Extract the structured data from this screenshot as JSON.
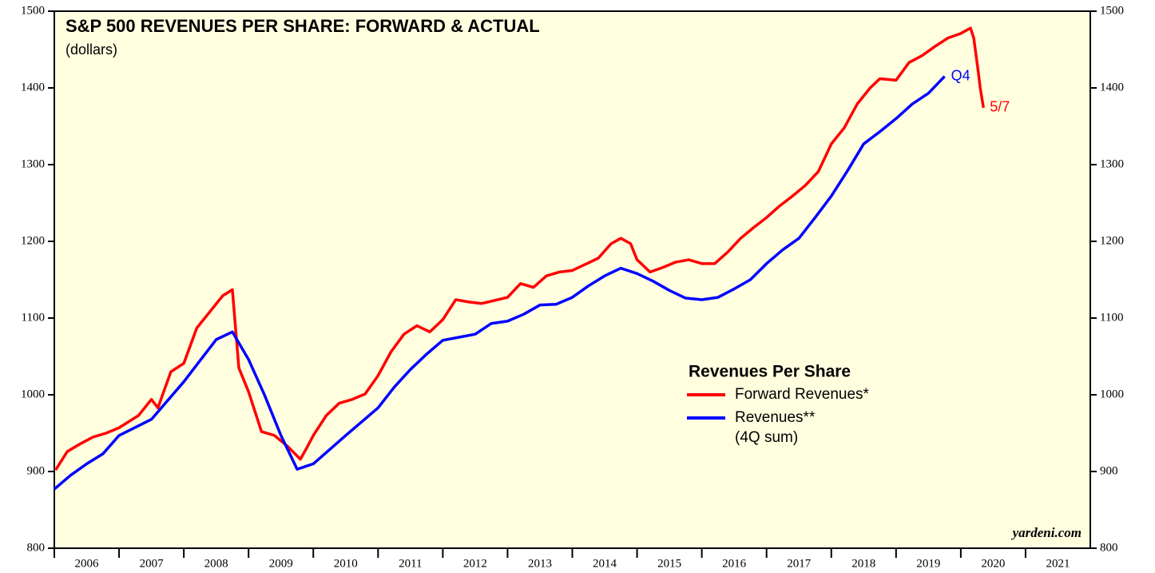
{
  "chart_data": {
    "type": "line",
    "title": "S&P 500 REVENUES PER SHARE: FORWARD & ACTUAL",
    "subtitle": "(dollars)",
    "legend_title": "Revenues Per Share",
    "source": "yardeni.com",
    "xlim": [
      2006,
      2022
    ],
    "xticks": [
      2006,
      2007,
      2008,
      2009,
      2010,
      2011,
      2012,
      2013,
      2014,
      2015,
      2016,
      2017,
      2018,
      2019,
      2020,
      2021
    ],
    "ylim": [
      800,
      1500
    ],
    "yticks": [
      800,
      900,
      1000,
      1100,
      1200,
      1300,
      1400,
      1500
    ],
    "series": [
      {
        "name": "Forward Revenues*",
        "color": "#ff0000",
        "end_label": "5/7",
        "x": [
          2006.02,
          2006.2,
          2006.4,
          2006.6,
          2006.8,
          2007.0,
          2007.3,
          2007.5,
          2007.6,
          2007.8,
          2008.0,
          2008.2,
          2008.4,
          2008.6,
          2008.75,
          2008.85,
          2009.0,
          2009.2,
          2009.4,
          2009.6,
          2009.8,
          2009.9,
          2010.0,
          2010.2,
          2010.4,
          2010.6,
          2010.8,
          2011.0,
          2011.2,
          2011.4,
          2011.6,
          2011.8,
          2012.0,
          2012.2,
          2012.4,
          2012.6,
          2012.8,
          2013.0,
          2013.2,
          2013.4,
          2013.6,
          2013.8,
          2014.0,
          2014.2,
          2014.4,
          2014.6,
          2014.75,
          2014.9,
          2015.0,
          2015.2,
          2015.4,
          2015.6,
          2015.8,
          2016.0,
          2016.2,
          2016.4,
          2016.6,
          2016.8,
          2017.0,
          2017.2,
          2017.4,
          2017.6,
          2017.8,
          2018.0,
          2018.2,
          2018.4,
          2018.6,
          2018.75,
          2019.0,
          2019.2,
          2019.4,
          2019.6,
          2019.8,
          2020.0,
          2020.15,
          2020.2,
          2020.27,
          2020.3,
          2020.35
        ],
        "values": [
          902,
          926,
          936,
          945,
          950,
          957,
          973,
          994,
          983,
          1030,
          1041,
          1087,
          1108,
          1129,
          1137,
          1035,
          1004,
          952,
          947,
          933,
          916,
          931,
          947,
          973,
          989,
          994,
          1001,
          1025,
          1056,
          1079,
          1090,
          1082,
          1098,
          1124,
          1121,
          1119,
          1123,
          1127,
          1145,
          1140,
          1155,
          1160,
          1162,
          1170,
          1178,
          1197,
          1204,
          1197,
          1176,
          1160,
          1166,
          1173,
          1176,
          1171,
          1171,
          1186,
          1204,
          1218,
          1231,
          1246,
          1259,
          1273,
          1291,
          1327,
          1348,
          1379,
          1400,
          1412,
          1410,
          1433,
          1442,
          1454,
          1465,
          1471,
          1478,
          1465,
          1421,
          1400,
          1374
        ]
      },
      {
        "name": "Revenues**",
        "name_note": "(4Q sum)",
        "color": "#0000ff",
        "end_label": "Q4",
        "x": [
          2006.0,
          2006.25,
          2006.5,
          2006.75,
          2007.0,
          2007.5,
          2008.0,
          2008.5,
          2008.75,
          2009.0,
          2009.25,
          2009.5,
          2009.75,
          2010.0,
          2010.5,
          2011.0,
          2011.25,
          2011.5,
          2011.75,
          2012.0,
          2012.25,
          2012.5,
          2012.75,
          2013.0,
          2013.25,
          2013.5,
          2013.75,
          2014.0,
          2014.25,
          2014.5,
          2014.75,
          2015.0,
          2015.25,
          2015.5,
          2015.75,
          2016.0,
          2016.25,
          2016.5,
          2016.75,
          2017.0,
          2017.25,
          2017.5,
          2017.75,
          2018.0,
          2018.25,
          2018.5,
          2018.75,
          2019.0,
          2019.25,
          2019.5,
          2019.75
        ],
        "values": [
          877,
          895,
          910,
          923,
          947,
          968,
          1017,
          1072,
          1082,
          1046,
          999,
          947,
          903,
          910,
          947,
          983,
          1010,
          1033,
          1053,
          1071,
          1075,
          1079,
          1093,
          1096,
          1105,
          1117,
          1118,
          1127,
          1142,
          1155,
          1165,
          1158,
          1148,
          1136,
          1126,
          1124,
          1127,
          1138,
          1150,
          1171,
          1189,
          1204,
          1231,
          1259,
          1292,
          1327,
          1343,
          1360,
          1379,
          1393,
          1415
        ]
      }
    ]
  }
}
